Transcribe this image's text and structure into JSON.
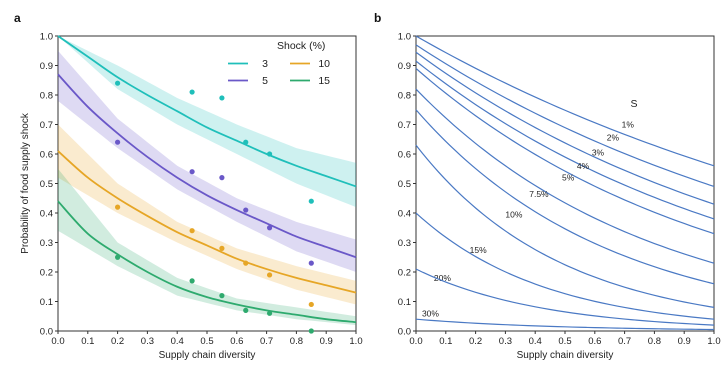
{
  "colors": {
    "s3": "#1fbfba",
    "s5": "#6a58c8",
    "s10": "#e6a626",
    "s15": "#2eaa6e",
    "panel_b_lines": "#4a79c4",
    "axis": "#333333"
  },
  "chart_data": [
    {
      "type": "scatter",
      "panel": "a",
      "xlabel": "Supply chain diversity",
      "ylabel": "Probability of food supply shock",
      "xlim": [
        0,
        1
      ],
      "ylim": [
        0,
        1
      ],
      "xticks": [
        "0.0",
        "0.1",
        "0.2",
        "0.3",
        "0.4",
        "0.5",
        "0.6",
        "0.7",
        "0.8",
        "0.9",
        "1.0"
      ],
      "yticks": [
        "0.0",
        "0.1",
        "0.2",
        "0.3",
        "0.4",
        "0.5",
        "0.6",
        "0.7",
        "0.8",
        "0.9",
        "1.0"
      ],
      "grid": false,
      "legend": {
        "title": "Shock (%)",
        "placement": "top-right"
      },
      "series": [
        {
          "name": "3",
          "color_key": "s3",
          "points": [
            [
              0.2,
              0.84
            ],
            [
              0.45,
              0.81
            ],
            [
              0.55,
              0.79
            ],
            [
              0.63,
              0.64
            ],
            [
              0.71,
              0.6
            ],
            [
              0.85,
              0.44
            ]
          ],
          "fit": [
            [
              0.0,
              1.0
            ],
            [
              0.1,
              0.93
            ],
            [
              0.2,
              0.86
            ],
            [
              0.3,
              0.8
            ],
            [
              0.4,
              0.745
            ],
            [
              0.5,
              0.69
            ],
            [
              0.6,
              0.645
            ],
            [
              0.7,
              0.6
            ],
            [
              0.8,
              0.56
            ],
            [
              0.9,
              0.525
            ],
            [
              1.0,
              0.49
            ]
          ],
          "band": [
            [
              0.0,
              1.0,
              1.0
            ],
            [
              0.2,
              0.82,
              0.9
            ],
            [
              0.4,
              0.7,
              0.79
            ],
            [
              0.6,
              0.6,
              0.7
            ],
            [
              0.8,
              0.5,
              0.62
            ],
            [
              1.0,
              0.42,
              0.57
            ]
          ]
        },
        {
          "name": "5",
          "color_key": "s5",
          "points": [
            [
              0.2,
              0.64
            ],
            [
              0.45,
              0.54
            ],
            [
              0.55,
              0.52
            ],
            [
              0.63,
              0.41
            ],
            [
              0.71,
              0.35
            ],
            [
              0.85,
              0.23
            ]
          ],
          "fit": [
            [
              0.0,
              0.87
            ],
            [
              0.1,
              0.76
            ],
            [
              0.2,
              0.67
            ],
            [
              0.3,
              0.59
            ],
            [
              0.4,
              0.52
            ],
            [
              0.5,
              0.46
            ],
            [
              0.6,
              0.41
            ],
            [
              0.7,
              0.365
            ],
            [
              0.8,
              0.32
            ],
            [
              0.9,
              0.285
            ],
            [
              1.0,
              0.25
            ]
          ],
          "band": [
            [
              0.0,
              0.78,
              0.95
            ],
            [
              0.2,
              0.62,
              0.72
            ],
            [
              0.4,
              0.48,
              0.56
            ],
            [
              0.6,
              0.37,
              0.45
            ],
            [
              0.8,
              0.27,
              0.37
            ],
            [
              1.0,
              0.2,
              0.31
            ]
          ]
        },
        {
          "name": "10",
          "color_key": "s10",
          "points": [
            [
              0.2,
              0.42
            ],
            [
              0.45,
              0.34
            ],
            [
              0.55,
              0.28
            ],
            [
              0.63,
              0.23
            ],
            [
              0.71,
              0.19
            ],
            [
              0.85,
              0.09
            ]
          ],
          "fit": [
            [
              0.0,
              0.61
            ],
            [
              0.1,
              0.52
            ],
            [
              0.2,
              0.45
            ],
            [
              0.3,
              0.39
            ],
            [
              0.4,
              0.335
            ],
            [
              0.5,
              0.29
            ],
            [
              0.6,
              0.245
            ],
            [
              0.7,
              0.21
            ],
            [
              0.8,
              0.18
            ],
            [
              0.9,
              0.155
            ],
            [
              1.0,
              0.13
            ]
          ],
          "band": [
            [
              0.0,
              0.52,
              0.7
            ],
            [
              0.2,
              0.4,
              0.5
            ],
            [
              0.4,
              0.3,
              0.37
            ],
            [
              0.6,
              0.21,
              0.28
            ],
            [
              0.8,
              0.14,
              0.22
            ],
            [
              1.0,
              0.09,
              0.17
            ]
          ]
        },
        {
          "name": "15",
          "color_key": "s15",
          "points": [
            [
              0.2,
              0.25
            ],
            [
              0.45,
              0.17
            ],
            [
              0.55,
              0.12
            ],
            [
              0.63,
              0.07
            ],
            [
              0.71,
              0.06
            ],
            [
              0.85,
              0.0
            ]
          ],
          "fit": [
            [
              0.0,
              0.44
            ],
            [
              0.1,
              0.33
            ],
            [
              0.2,
              0.26
            ],
            [
              0.3,
              0.2
            ],
            [
              0.4,
              0.15
            ],
            [
              0.5,
              0.115
            ],
            [
              0.6,
              0.09
            ],
            [
              0.7,
              0.07
            ],
            [
              0.8,
              0.055
            ],
            [
              0.9,
              0.04
            ],
            [
              1.0,
              0.03
            ]
          ],
          "band": [
            [
              0.0,
              0.34,
              0.55
            ],
            [
              0.2,
              0.22,
              0.3
            ],
            [
              0.4,
              0.12,
              0.18
            ],
            [
              0.6,
              0.07,
              0.11
            ],
            [
              0.8,
              0.04,
              0.08
            ],
            [
              1.0,
              0.02,
              0.05
            ]
          ]
        }
      ]
    },
    {
      "type": "line",
      "panel": "b",
      "xlabel": "Supply chain diversity",
      "xlim": [
        0,
        1
      ],
      "ylim": [
        0,
        1
      ],
      "xticks": [
        "0.0",
        "0.1",
        "0.2",
        "0.3",
        "0.4",
        "0.5",
        "0.6",
        "0.7",
        "0.8",
        "0.9",
        "1.0"
      ],
      "yticks": [
        "0.0",
        "0.1",
        "0.2",
        "0.3",
        "0.4",
        "0.5",
        "0.6",
        "0.7",
        "0.8",
        "0.9",
        "1.0"
      ],
      "grid": false,
      "header_label": "S",
      "series": [
        {
          "name": "1%",
          "y0": 1.0,
          "y1": 0.56,
          "label_at": [
            0.69,
            0.69
          ]
        },
        {
          "name": "2%",
          "y0": 0.97,
          "y1": 0.49,
          "label_at": [
            0.64,
            0.645
          ]
        },
        {
          "name": "3%",
          "y0": 0.945,
          "y1": 0.43,
          "label_at": [
            0.59,
            0.595
          ]
        },
        {
          "name": "4%",
          "y0": 0.915,
          "y1": 0.38,
          "label_at": [
            0.54,
            0.55
          ]
        },
        {
          "name": "5%",
          "y0": 0.89,
          "y1": 0.33,
          "label_at": [
            0.49,
            0.51
          ]
        },
        {
          "name": "7.5%",
          "y0": 0.82,
          "y1": 0.23,
          "label_at": [
            0.38,
            0.455
          ]
        },
        {
          "name": "10%",
          "y0": 0.75,
          "y1": 0.16,
          "label_at": [
            0.3,
            0.385
          ]
        },
        {
          "name": "15%",
          "y0": 0.63,
          "y1": 0.08,
          "label_at": [
            0.18,
            0.265
          ]
        },
        {
          "name": "20%",
          "y0": 0.4,
          "y1": 0.04,
          "label_at": [
            0.06,
            0.17
          ]
        },
        {
          "name": "",
          "y0": 0.21,
          "y1": 0.02,
          "label_at": null
        },
        {
          "name": "30%",
          "y0": 0.04,
          "y1": 0.005,
          "label_at": [
            0.02,
            0.05
          ]
        }
      ]
    }
  ],
  "panels": {
    "a": "a",
    "b": "b"
  }
}
